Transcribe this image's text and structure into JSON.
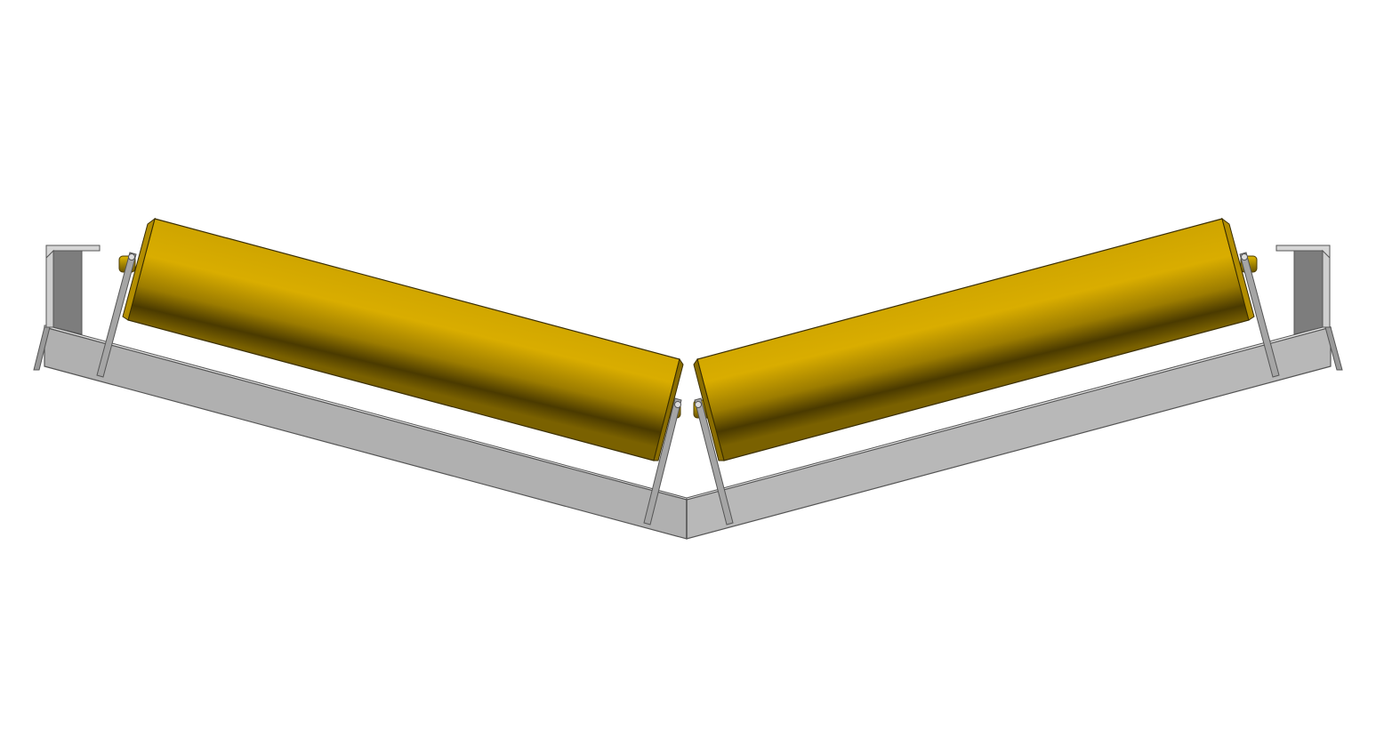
{
  "scene": {
    "subject": "v-return-idler-two-roll",
    "background_color": "#ffffff",
    "colors": {
      "roller_light": "#d9ad00",
      "roller_mid": "#b28d00",
      "roller_dark": "#4a3a00",
      "frame_face": "#b3b3b3",
      "frame_edge": "#555555",
      "bracket_gray": "#7d7d7d",
      "bracket_light": "#d0d0d0",
      "rod_gray": "#9a9a9a"
    },
    "parts": {
      "rollers": 2,
      "end_brackets": 2,
      "hanger_rods": 4
    }
  }
}
